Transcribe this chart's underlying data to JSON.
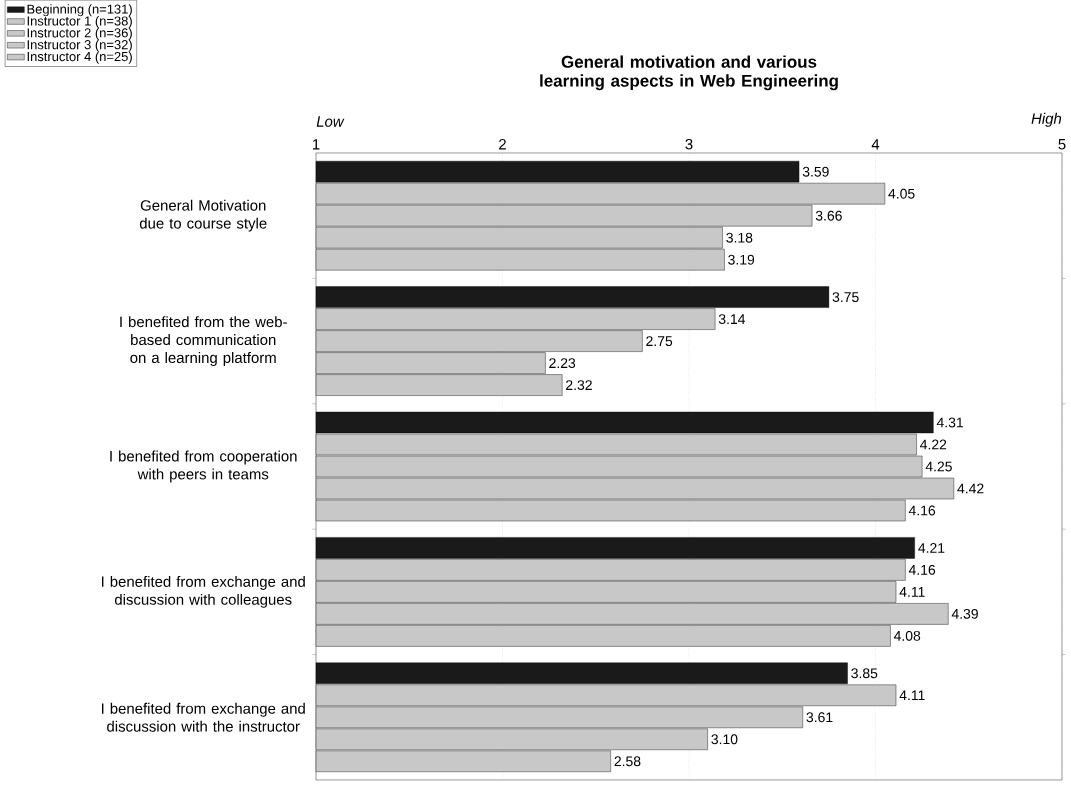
{
  "chart_data": {
    "type": "bar",
    "orientation": "horizontal",
    "title": "General motivation and various learning aspects in Web Engineering",
    "categories": [
      "General Motivation due to course style",
      "I benefited from the web-based communication on a learning platform",
      "I benefited from cooperation with peers in teams",
      "I benefited from exchange and discussion with colleagues",
      "I benefited from exchange and discussion with the instructor"
    ],
    "series": [
      {
        "name": "Beginning (n=131)",
        "color": "#1a1a1a",
        "values": [
          3.59,
          3.75,
          4.31,
          4.21,
          3.85
        ],
        "value_labels": [
          "3.59",
          "3.75",
          "4.31",
          "4.21",
          "3.85"
        ]
      },
      {
        "name": "Instructor 1 (n=38)",
        "color": "#c8c8c8",
        "values": [
          4.05,
          3.14,
          4.22,
          4.16,
          4.11
        ],
        "value_labels": [
          "4.05",
          "3.14",
          "4.22",
          "4.16",
          "4.11"
        ]
      },
      {
        "name": "Instructor 2 (n=36)",
        "color": "#c8c8c8",
        "values": [
          3.66,
          2.75,
          4.25,
          4.11,
          3.61
        ],
        "value_labels": [
          "3.66",
          "2.75",
          "4.25",
          "4.11",
          "3.61"
        ]
      },
      {
        "name": "Instructor 3 (n=32)",
        "color": "#c8c8c8",
        "values": [
          3.18,
          2.23,
          4.42,
          4.39,
          3.1
        ],
        "value_labels": [
          "3.18",
          "2.23",
          "4.42",
          "4.39",
          "3.10"
        ]
      },
      {
        "name": "Instructor 4 (n=25)",
        "color": "#c8c8c8",
        "values": [
          3.19,
          2.32,
          4.16,
          4.08,
          2.58
        ],
        "value_labels": [
          "3.19",
          "2.32",
          "4.16",
          "4.08",
          "2.58"
        ]
      }
    ],
    "xlim": [
      1,
      5
    ],
    "xticks": [
      1,
      2,
      3,
      4,
      5
    ],
    "annotations": [
      "Low",
      "High"
    ],
    "grid": "x",
    "legend": "top left"
  }
}
